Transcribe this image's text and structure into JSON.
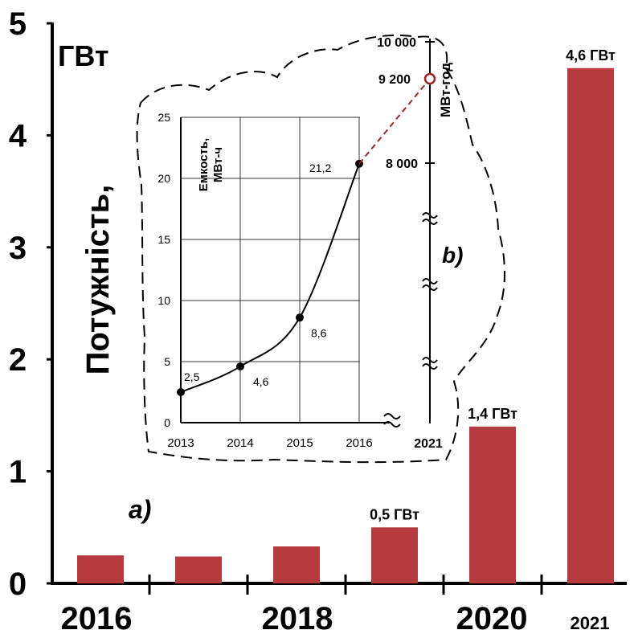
{
  "chart_data": [
    {
      "type": "bar",
      "panel_label": "a)",
      "ylabel": "Потужність,",
      "yunit": "ГВт",
      "ylim": [
        0,
        5
      ],
      "yticks": [
        "0",
        "1",
        "2",
        "3",
        "4",
        "5"
      ],
      "xtick_labels": [
        "2016",
        "2018",
        "2020",
        "2021"
      ],
      "values": [
        0.25,
        0.24,
        0.33,
        0.5,
        1.4,
        4.6
      ],
      "value_labels": [
        "",
        "",
        "",
        "0,5 ГВт",
        "1,4 ГВт",
        "4,6 ГВт"
      ],
      "bar_color": "#b73a3e"
    },
    {
      "type": "line",
      "ylabel_line1": "Емкость,",
      "ylabel_line2": "МВт-ч",
      "ylim": [
        0,
        25
      ],
      "yticks": [
        "0",
        "5",
        "10",
        "15",
        "20",
        "25"
      ],
      "x": [
        "2013",
        "2014",
        "2015",
        "2016"
      ],
      "y": [
        2.5,
        4.6,
        8.6,
        21.2
      ],
      "point_labels": [
        "2,5",
        "4,6",
        "8,6",
        "21,2"
      ],
      "grid": true,
      "line_color": "#000000"
    },
    {
      "type": "line",
      "panel_label": "b)",
      "ylabel": "МВт-год",
      "yticks": [
        "10 000",
        "9 200",
        "8 000"
      ],
      "x": [
        "2016",
        "2021"
      ],
      "y": [
        8000,
        9200
      ],
      "xtick_label": "2021",
      "line_color": "#a02424"
    }
  ]
}
